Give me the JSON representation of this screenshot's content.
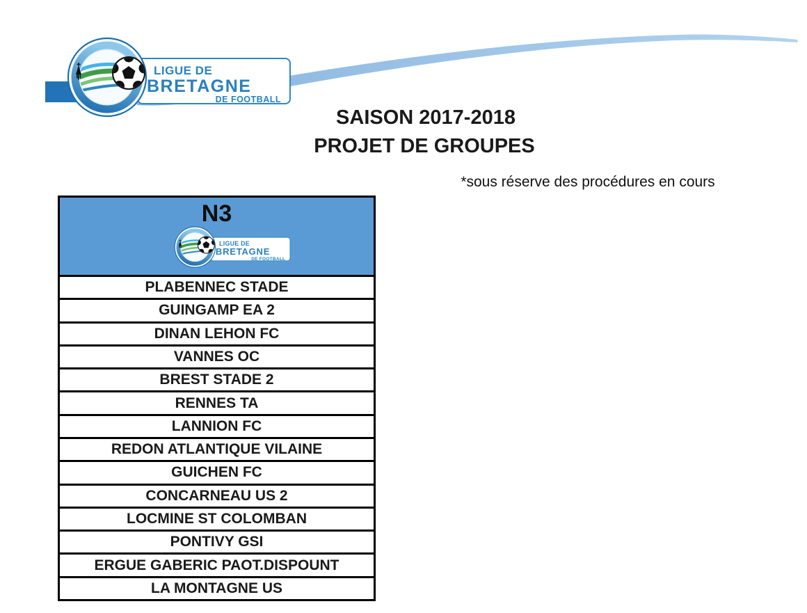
{
  "header": {
    "season_title": "SAISON 2017-2018",
    "project_title": "PROJET DE GROUPES",
    "note": "*sous réserve des procédures en cours"
  },
  "logo": {
    "line1": "LIGUE DE",
    "line2": "BRETAGNE",
    "line3": "DE FOOTBALL"
  },
  "table": {
    "group_label": "N3",
    "teams": [
      "PLABENNEC STADE",
      "GUINGAMP EA 2",
      "DINAN LEHON FC",
      "VANNES OC",
      "BREST STADE 2",
      "RENNES TA",
      "LANNION FC",
      "REDON ATLANTIQUE VILAINE",
      "GUICHEN FC",
      "CONCARNEAU US 2",
      "LOCMINE ST COLOMBAN",
      "PONTIVY GSI",
      "ERGUE GABERIC PAOT.DISPOUNT",
      "LA MONTAGNE US"
    ]
  },
  "colors": {
    "header_blue": "#5b9bd5",
    "logo_blue": "#2e86c4",
    "band_blue": "#2273b8",
    "swoosh_light": "#b3d3ee",
    "swoosh_dark": "#88b5e0",
    "border_black": "#000000"
  }
}
